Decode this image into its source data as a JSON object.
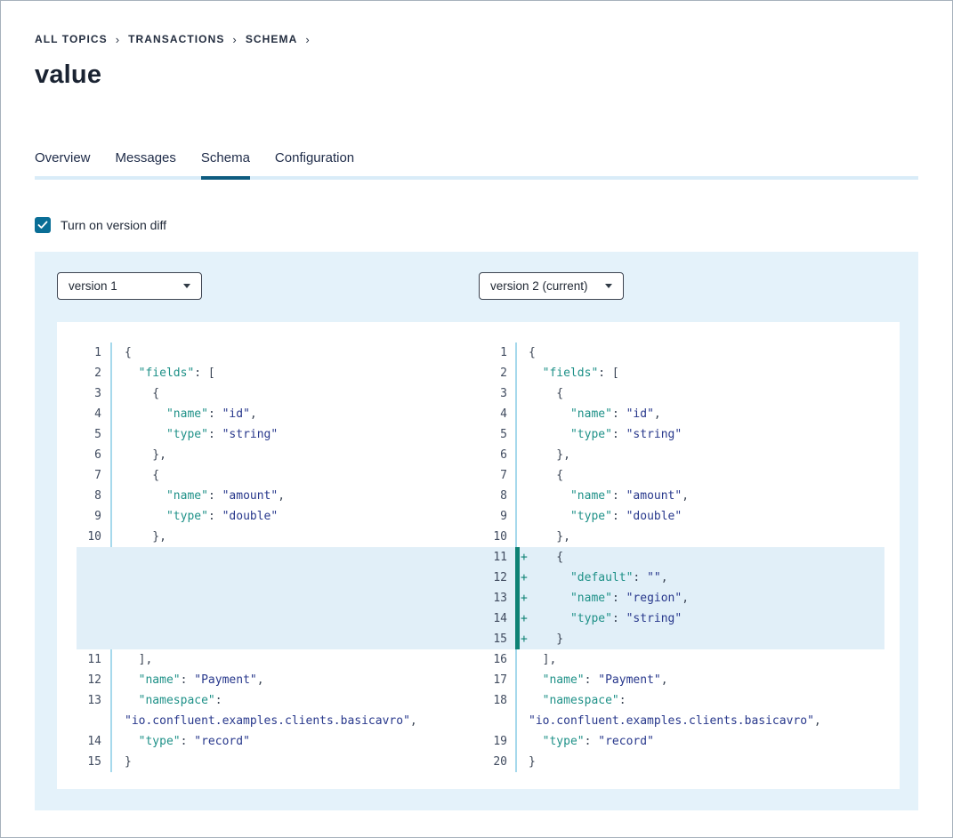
{
  "breadcrumb": {
    "items": [
      "ALL TOPICS",
      "TRANSACTIONS",
      "SCHEMA"
    ],
    "separator": "›"
  },
  "page": {
    "title": "value"
  },
  "tabs": [
    {
      "label": "Overview",
      "active": false
    },
    {
      "label": "Messages",
      "active": false
    },
    {
      "label": "Schema",
      "active": true
    },
    {
      "label": "Configuration",
      "active": false
    }
  ],
  "version_diff": {
    "checkbox_label": "Turn on version diff",
    "checked": true
  },
  "diff": {
    "left_version": "version 1",
    "right_version": "version 2 (current)",
    "added_marker": "+",
    "rows": [
      {
        "ln_l": "1",
        "ln_r": "1",
        "added": false,
        "code_l": [
          [
            "p",
            "{"
          ]
        ],
        "code_r": [
          [
            "p",
            "{"
          ]
        ]
      },
      {
        "ln_l": "2",
        "ln_r": "2",
        "added": false,
        "code_l": [
          [
            "p",
            "  "
          ],
          [
            "k",
            "\"fields\""
          ],
          [
            "p",
            ": ["
          ]
        ],
        "code_r": [
          [
            "p",
            "  "
          ],
          [
            "k",
            "\"fields\""
          ],
          [
            "p",
            ": ["
          ]
        ]
      },
      {
        "ln_l": "3",
        "ln_r": "3",
        "added": false,
        "code_l": [
          [
            "p",
            "    {"
          ]
        ],
        "code_r": [
          [
            "p",
            "    {"
          ]
        ]
      },
      {
        "ln_l": "4",
        "ln_r": "4",
        "added": false,
        "code_l": [
          [
            "p",
            "      "
          ],
          [
            "k",
            "\"name\""
          ],
          [
            "p",
            ": "
          ],
          [
            "v",
            "\"id\""
          ],
          [
            "p",
            ","
          ]
        ],
        "code_r": [
          [
            "p",
            "      "
          ],
          [
            "k",
            "\"name\""
          ],
          [
            "p",
            ": "
          ],
          [
            "v",
            "\"id\""
          ],
          [
            "p",
            ","
          ]
        ]
      },
      {
        "ln_l": "5",
        "ln_r": "5",
        "added": false,
        "code_l": [
          [
            "p",
            "      "
          ],
          [
            "k",
            "\"type\""
          ],
          [
            "p",
            ": "
          ],
          [
            "v",
            "\"string\""
          ]
        ],
        "code_r": [
          [
            "p",
            "      "
          ],
          [
            "k",
            "\"type\""
          ],
          [
            "p",
            ": "
          ],
          [
            "v",
            "\"string\""
          ]
        ]
      },
      {
        "ln_l": "6",
        "ln_r": "6",
        "added": false,
        "code_l": [
          [
            "p",
            "    },"
          ]
        ],
        "code_r": [
          [
            "p",
            "    },"
          ]
        ]
      },
      {
        "ln_l": "7",
        "ln_r": "7",
        "added": false,
        "code_l": [
          [
            "p",
            "    {"
          ]
        ],
        "code_r": [
          [
            "p",
            "    {"
          ]
        ]
      },
      {
        "ln_l": "8",
        "ln_r": "8",
        "added": false,
        "code_l": [
          [
            "p",
            "      "
          ],
          [
            "k",
            "\"name\""
          ],
          [
            "p",
            ": "
          ],
          [
            "v",
            "\"amount\""
          ],
          [
            "p",
            ","
          ]
        ],
        "code_r": [
          [
            "p",
            "      "
          ],
          [
            "k",
            "\"name\""
          ],
          [
            "p",
            ": "
          ],
          [
            "v",
            "\"amount\""
          ],
          [
            "p",
            ","
          ]
        ]
      },
      {
        "ln_l": "9",
        "ln_r": "9",
        "added": false,
        "code_l": [
          [
            "p",
            "      "
          ],
          [
            "k",
            "\"type\""
          ],
          [
            "p",
            ": "
          ],
          [
            "v",
            "\"double\""
          ]
        ],
        "code_r": [
          [
            "p",
            "      "
          ],
          [
            "k",
            "\"type\""
          ],
          [
            "p",
            ": "
          ],
          [
            "v",
            "\"double\""
          ]
        ]
      },
      {
        "ln_l": "10",
        "ln_r": "10",
        "added": false,
        "code_l": [
          [
            "p",
            "    },"
          ]
        ],
        "code_r": [
          [
            "p",
            "    },"
          ]
        ]
      },
      {
        "ln_l": "",
        "ln_r": "11",
        "added": true,
        "code_l": [],
        "code_r": [
          [
            "p",
            "    {"
          ]
        ]
      },
      {
        "ln_l": "",
        "ln_r": "12",
        "added": true,
        "code_l": [],
        "code_r": [
          [
            "p",
            "      "
          ],
          [
            "k",
            "\"default\""
          ],
          [
            "p",
            ": "
          ],
          [
            "v",
            "\"\""
          ],
          [
            "p",
            ","
          ]
        ]
      },
      {
        "ln_l": "",
        "ln_r": "13",
        "added": true,
        "code_l": [],
        "code_r": [
          [
            "p",
            "      "
          ],
          [
            "k",
            "\"name\""
          ],
          [
            "p",
            ": "
          ],
          [
            "v",
            "\"region\""
          ],
          [
            "p",
            ","
          ]
        ]
      },
      {
        "ln_l": "",
        "ln_r": "14",
        "added": true,
        "code_l": [],
        "code_r": [
          [
            "p",
            "      "
          ],
          [
            "k",
            "\"type\""
          ],
          [
            "p",
            ": "
          ],
          [
            "v",
            "\"string\""
          ]
        ]
      },
      {
        "ln_l": "",
        "ln_r": "15",
        "added": true,
        "code_l": [],
        "code_r": [
          [
            "p",
            "    }"
          ]
        ]
      },
      {
        "ln_l": "11",
        "ln_r": "16",
        "added": false,
        "code_l": [
          [
            "p",
            "  ],"
          ]
        ],
        "code_r": [
          [
            "p",
            "  ],"
          ]
        ]
      },
      {
        "ln_l": "12",
        "ln_r": "17",
        "added": false,
        "code_l": [
          [
            "p",
            "  "
          ],
          [
            "k",
            "\"name\""
          ],
          [
            "p",
            ": "
          ],
          [
            "v",
            "\"Payment\""
          ],
          [
            "p",
            ","
          ]
        ],
        "code_r": [
          [
            "p",
            "  "
          ],
          [
            "k",
            "\"name\""
          ],
          [
            "p",
            ": "
          ],
          [
            "v",
            "\"Payment\""
          ],
          [
            "p",
            ","
          ]
        ]
      },
      {
        "ln_l": "13",
        "ln_r": "18",
        "added": false,
        "code_l": [
          [
            "p",
            "  "
          ],
          [
            "k",
            "\"namespace\""
          ],
          [
            "p",
            ":"
          ]
        ],
        "code_r": [
          [
            "p",
            "  "
          ],
          [
            "k",
            "\"namespace\""
          ],
          [
            "p",
            ":"
          ]
        ]
      },
      {
        "ln_l": "",
        "ln_r": "",
        "added": false,
        "code_l": [
          [
            "v",
            "\"io.confluent.examples.clients.basicavro\""
          ],
          [
            "p",
            ","
          ]
        ],
        "code_r": [
          [
            "v",
            "\"io.confluent.examples.clients.basicavro\""
          ],
          [
            "p",
            ","
          ]
        ]
      },
      {
        "ln_l": "14",
        "ln_r": "19",
        "added": false,
        "code_l": [
          [
            "p",
            "  "
          ],
          [
            "k",
            "\"type\""
          ],
          [
            "p",
            ": "
          ],
          [
            "v",
            "\"record\""
          ]
        ],
        "code_r": [
          [
            "p",
            "  "
          ],
          [
            "k",
            "\"type\""
          ],
          [
            "p",
            ": "
          ],
          [
            "v",
            "\"record\""
          ]
        ]
      },
      {
        "ln_l": "15",
        "ln_r": "20",
        "added": false,
        "code_l": [
          [
            "p",
            "}"
          ]
        ],
        "code_r": [
          [
            "p",
            "}"
          ]
        ]
      }
    ]
  },
  "colors": {
    "panel_bg": "#e4f2fa",
    "diff_added_bg": "#e1eff8",
    "diff_added_bar": "#0e8274",
    "checkbox_accent": "#0a6e96",
    "active_tab_underline": "#0e5c80",
    "code_key": "#1f9188",
    "code_value": "#28388c",
    "gutter_separator": "#a6d9ec"
  }
}
